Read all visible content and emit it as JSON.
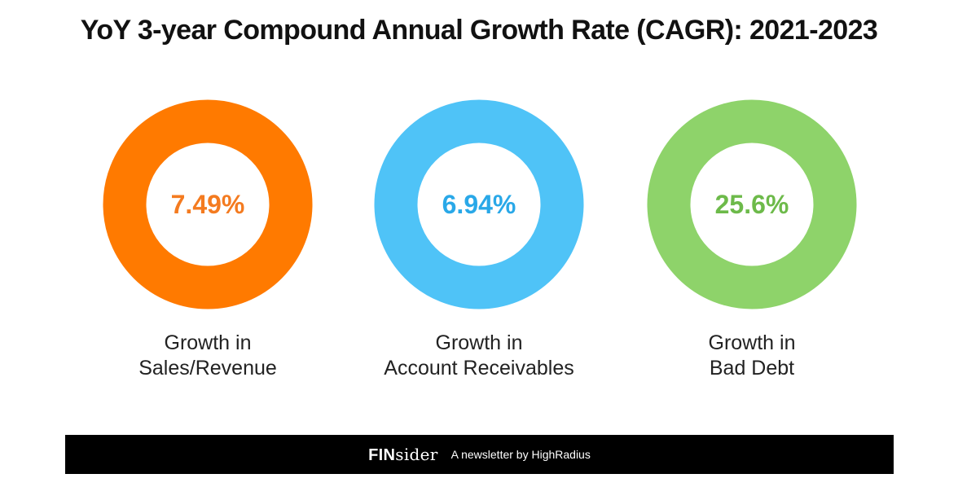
{
  "title": "YoY 3-year Compound Annual Growth Rate (CAGR): 2021-2023",
  "chart_data": {
    "type": "donut",
    "title": "YoY 3-year Compound Annual Growth Rate (CAGR): 2021-2023",
    "items": [
      {
        "label_line1": "Growth in",
        "label_line2": "Sales/Revenue",
        "value": 7.49,
        "value_text": "7.49%",
        "color": "#FF7A00",
        "text_color": "#F47B20"
      },
      {
        "label_line1": "Growth in",
        "label_line2": "Account Receivables",
        "value": 6.94,
        "value_text": "6.94%",
        "color": "#4FC3F7",
        "text_color": "#29A8E8"
      },
      {
        "label_line1": "Growth in",
        "label_line2": "Bad Debt",
        "value": 25.6,
        "value_text": "25.6%",
        "color": "#8ED36A",
        "text_color": "#6DBA4A"
      }
    ]
  },
  "footer": {
    "brand_strong": "FIN",
    "brand_rest": "sider",
    "tagline": "A newsletter by HighRadius"
  }
}
